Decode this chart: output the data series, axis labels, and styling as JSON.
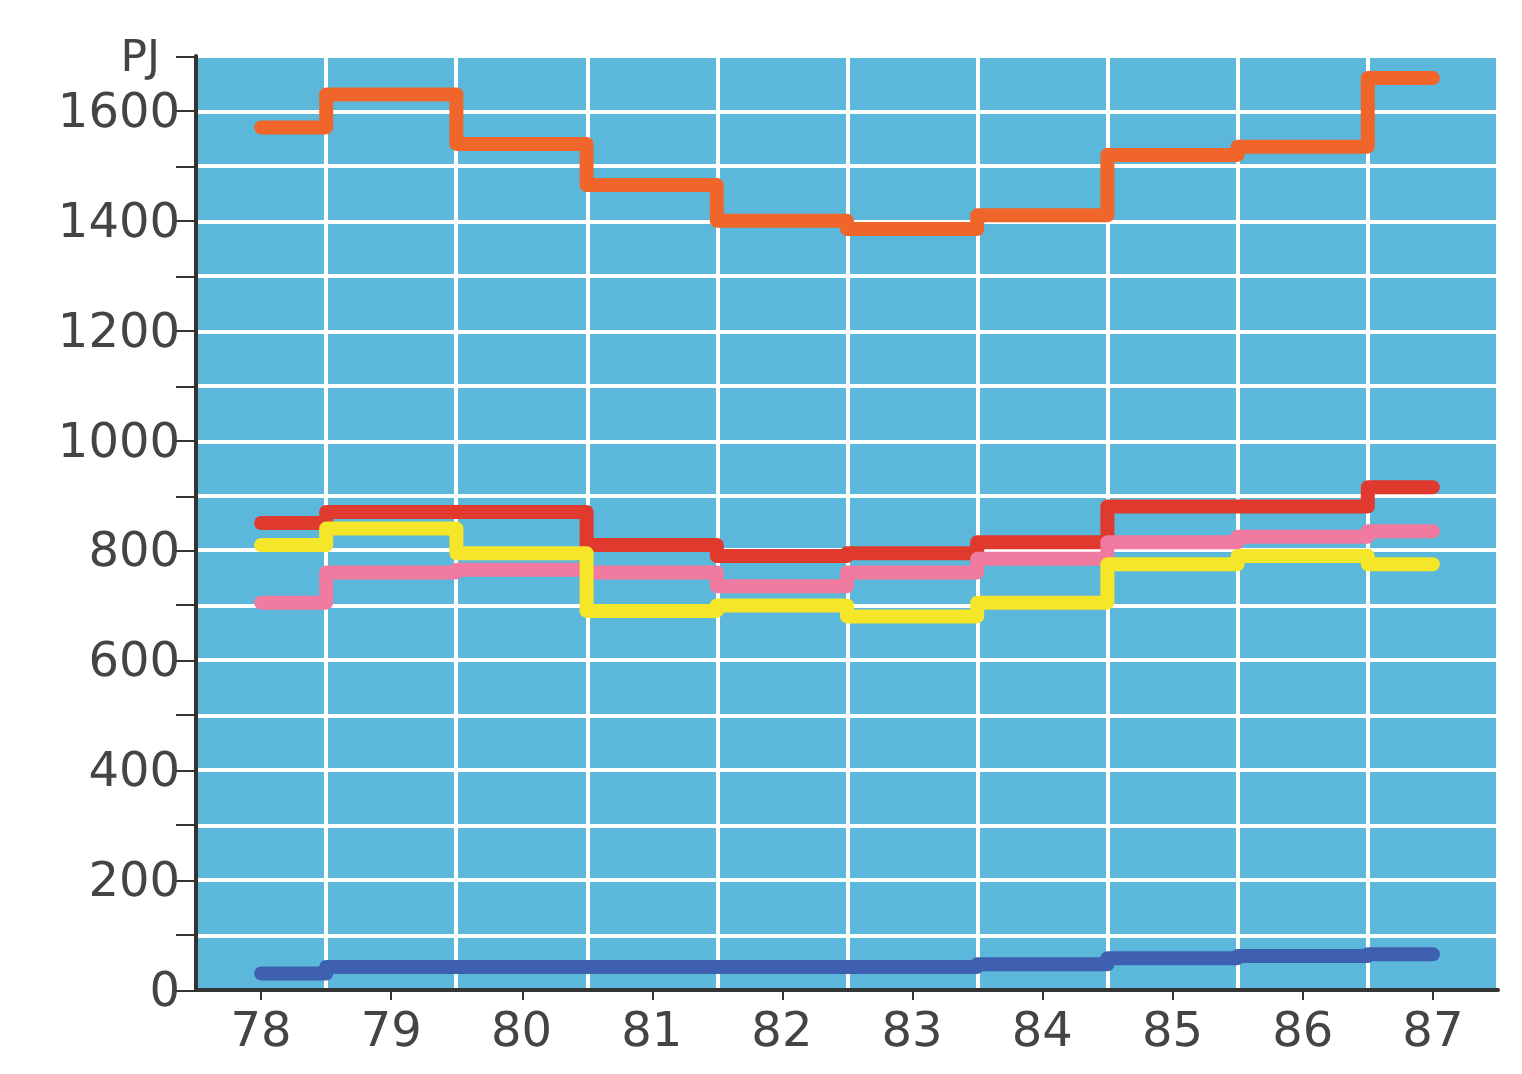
{
  "chart_data": {
    "type": "step",
    "ylabel": "PJ",
    "categories": [
      "78",
      "79",
      "80",
      "81",
      "82",
      "83",
      "84",
      "85",
      "86",
      "87"
    ],
    "series": [
      {
        "color": "#f0662a",
        "values": [
          1570,
          1630,
          1540,
          1465,
          1400,
          1385,
          1410,
          1520,
          1535,
          1660
        ]
      },
      {
        "color": "#e03a2e",
        "values": [
          850,
          870,
          870,
          810,
          790,
          795,
          815,
          880,
          880,
          915
        ]
      },
      {
        "color": "#f07aa0",
        "values": [
          705,
          760,
          765,
          760,
          735,
          760,
          785,
          815,
          825,
          835
        ]
      },
      {
        "color": "#f5e62a",
        "values": [
          810,
          840,
          795,
          690,
          700,
          680,
          705,
          775,
          790,
          775
        ]
      },
      {
        "color": "#3f5fb0",
        "values": [
          30,
          42,
          42,
          42,
          42,
          42,
          47,
          58,
          62,
          65
        ]
      }
    ],
    "ylim": [
      0,
      1700
    ],
    "yticks": [
      0,
      {
        "value": 100,
        "label": null
      },
      200,
      {
        "value": 300,
        "label": null
      },
      400,
      {
        "value": 500,
        "label": null
      },
      600,
      {
        "value": 700,
        "label": null
      },
      800,
      {
        "value": 900,
        "label": null
      },
      1000,
      {
        "value": 1100,
        "label": null
      },
      1200,
      {
        "value": 1300,
        "label": null
      },
      1400,
      {
        "value": 1500,
        "label": null
      },
      1600,
      {
        "value": 1700,
        "label": null
      }
    ],
    "grid": true,
    "line_style": "solid"
  }
}
